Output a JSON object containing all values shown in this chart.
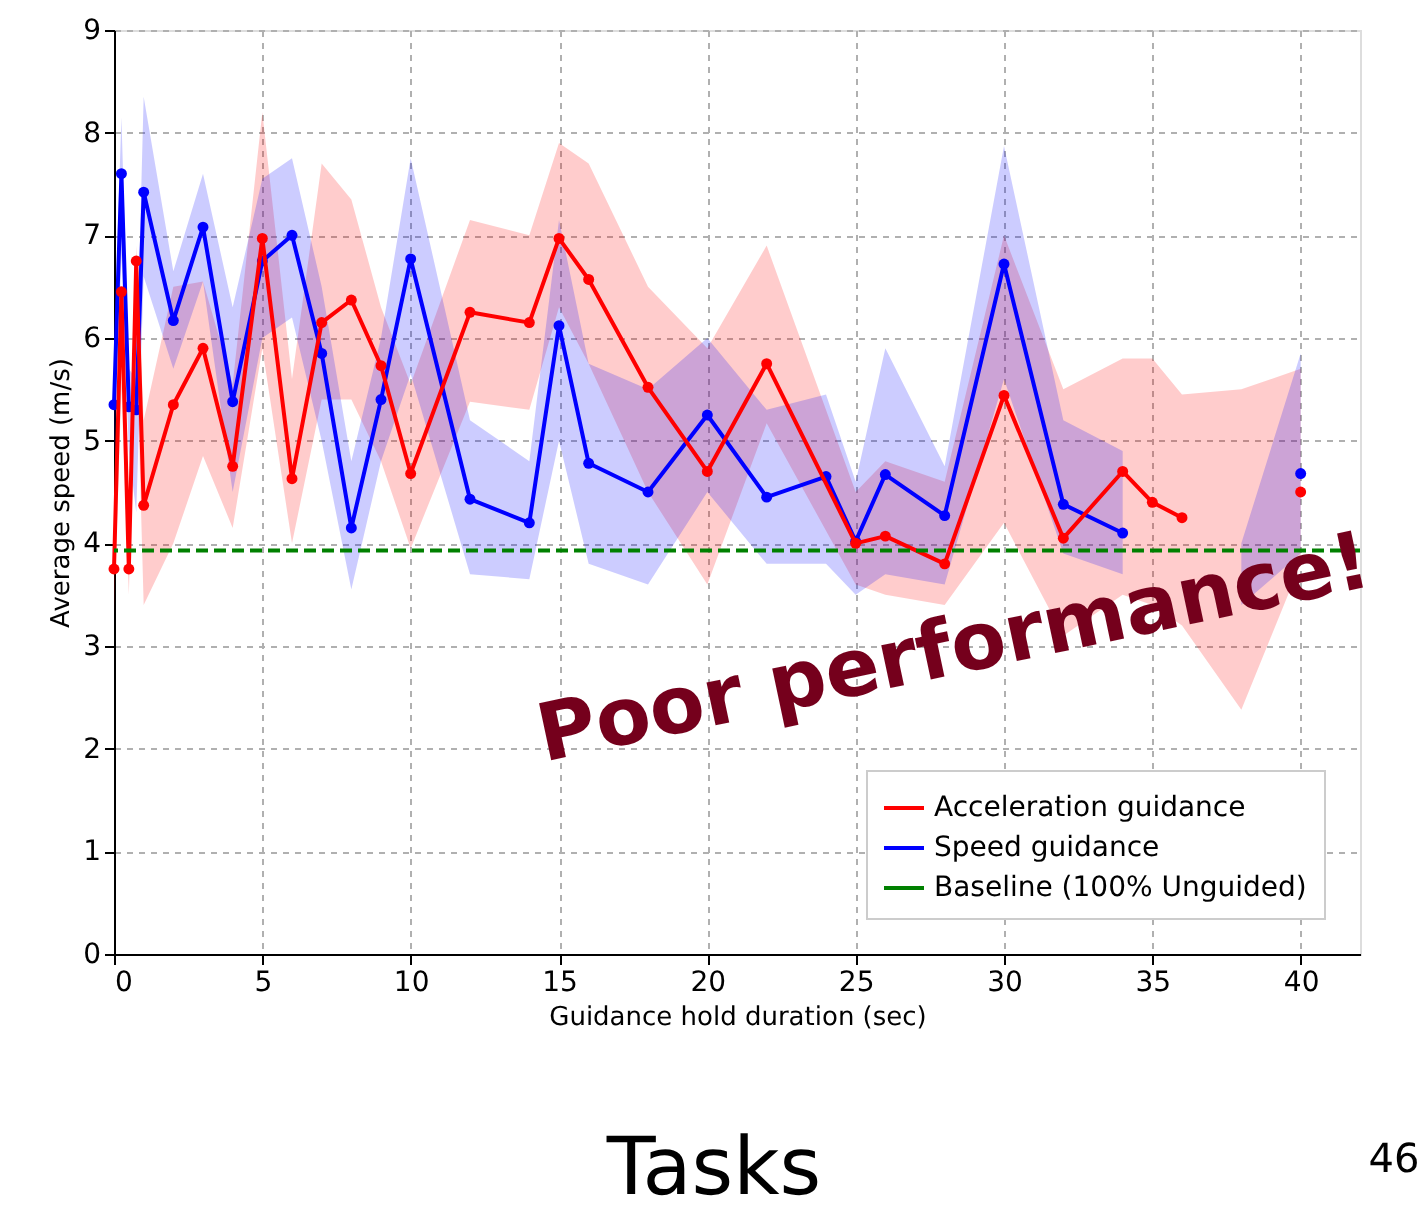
{
  "chart_data": {
    "type": "line",
    "xlabel": "Guidance hold duration (sec)",
    "ylabel": "Average speed (m/s)",
    "xlim": [
      0,
      42
    ],
    "xticks": [
      0,
      5,
      10,
      15,
      20,
      25,
      30,
      35,
      40
    ],
    "ylim": [
      0,
      9
    ],
    "yticks": [
      0,
      1,
      2,
      3,
      4,
      5,
      6,
      7,
      8,
      9
    ],
    "grid": true,
    "legend": "bottom right",
    "marker": "circle",
    "line_style": "solid",
    "series": [
      {
        "name": "Acceleration guidance",
        "color": "#ff0000",
        "x": [
          0,
          0.25,
          0.5,
          0.75,
          1,
          2,
          3,
          4,
          5,
          6,
          7,
          8,
          9,
          10,
          12,
          14,
          15,
          16,
          18,
          20,
          22,
          25,
          26,
          28,
          30,
          32,
          34,
          35,
          36,
          38,
          40
        ],
        "values": [
          3.75,
          6.45,
          3.75,
          6.75,
          4.37,
          5.35,
          5.9,
          4.75,
          6.97,
          4.63,
          6.15,
          6.37,
          5.73,
          4.68,
          6.25,
          6.15,
          6.97,
          6.57,
          5.52,
          4.7,
          5.75,
          4.0,
          4.07,
          3.8,
          5.44,
          4.05,
          4.7,
          4.4,
          4.25,
          null,
          4.5
        ],
        "lower": [
          3.3,
          5.5,
          3.5,
          6.0,
          3.4,
          4.0,
          4.85,
          4.15,
          5.9,
          4.0,
          5.4,
          5.4,
          4.8,
          3.95,
          5.38,
          5.3,
          6.3,
          5.75,
          4.5,
          3.6,
          5.17,
          3.6,
          3.5,
          3.4,
          4.2,
          3.1,
          3.5,
          3.4,
          3.2,
          2.38,
          3.8
        ],
        "upper": [
          4.5,
          6.5,
          4.0,
          6.9,
          5.2,
          6.5,
          6.55,
          5.55,
          8.2,
          5.6,
          7.7,
          7.35,
          6.3,
          5.55,
          7.15,
          7.0,
          7.9,
          7.7,
          6.5,
          5.9,
          6.9,
          4.5,
          4.8,
          4.6,
          7.0,
          5.5,
          5.8,
          5.8,
          5.45,
          5.5,
          5.7
        ]
      },
      {
        "name": "Speed guidance",
        "color": "#0000ff",
        "x": [
          0,
          0.25,
          0.5,
          0.75,
          1,
          2,
          3,
          4,
          5,
          6,
          7,
          8,
          9,
          10,
          12,
          14,
          15,
          16,
          18,
          20,
          22,
          24,
          25,
          26,
          28,
          30,
          32,
          34,
          36,
          38,
          40
        ],
        "values": [
          5.35,
          7.6,
          5.33,
          5.3,
          7.42,
          6.17,
          7.08,
          5.38,
          6.75,
          7.0,
          5.85,
          4.15,
          5.4,
          6.77,
          4.43,
          4.2,
          6.12,
          4.78,
          4.5,
          5.25,
          4.45,
          4.65,
          4.02,
          4.67,
          4.27,
          6.72,
          4.38,
          4.1,
          null,
          null,
          4.68
        ],
        "lower": [
          4.8,
          6.8,
          4.9,
          4.3,
          6.6,
          5.7,
          6.55,
          4.5,
          6.0,
          6.2,
          5.0,
          3.55,
          4.8,
          5.65,
          3.7,
          3.65,
          5.0,
          3.8,
          3.6,
          4.5,
          3.8,
          3.8,
          3.5,
          3.7,
          3.6,
          5.6,
          3.9,
          3.7,
          null,
          3.4,
          3.9
        ],
        "upper": [
          5.9,
          8.15,
          5.7,
          5.6,
          8.35,
          6.65,
          7.6,
          6.3,
          7.55,
          7.75,
          6.5,
          4.8,
          6.0,
          7.75,
          5.2,
          4.8,
          7.15,
          5.75,
          5.5,
          6.0,
          5.3,
          5.45,
          4.6,
          5.9,
          4.75,
          7.87,
          5.2,
          4.9,
          null,
          4.0,
          5.85
        ]
      }
    ],
    "ref_lines": [
      {
        "axis": "y",
        "value": 3.93,
        "label": "Baseline (100% Unguided)",
        "color": "#008000",
        "line_style": "dashed"
      }
    ],
    "annotations": [
      "Poor performance!",
      "Tasks",
      "46"
    ]
  }
}
